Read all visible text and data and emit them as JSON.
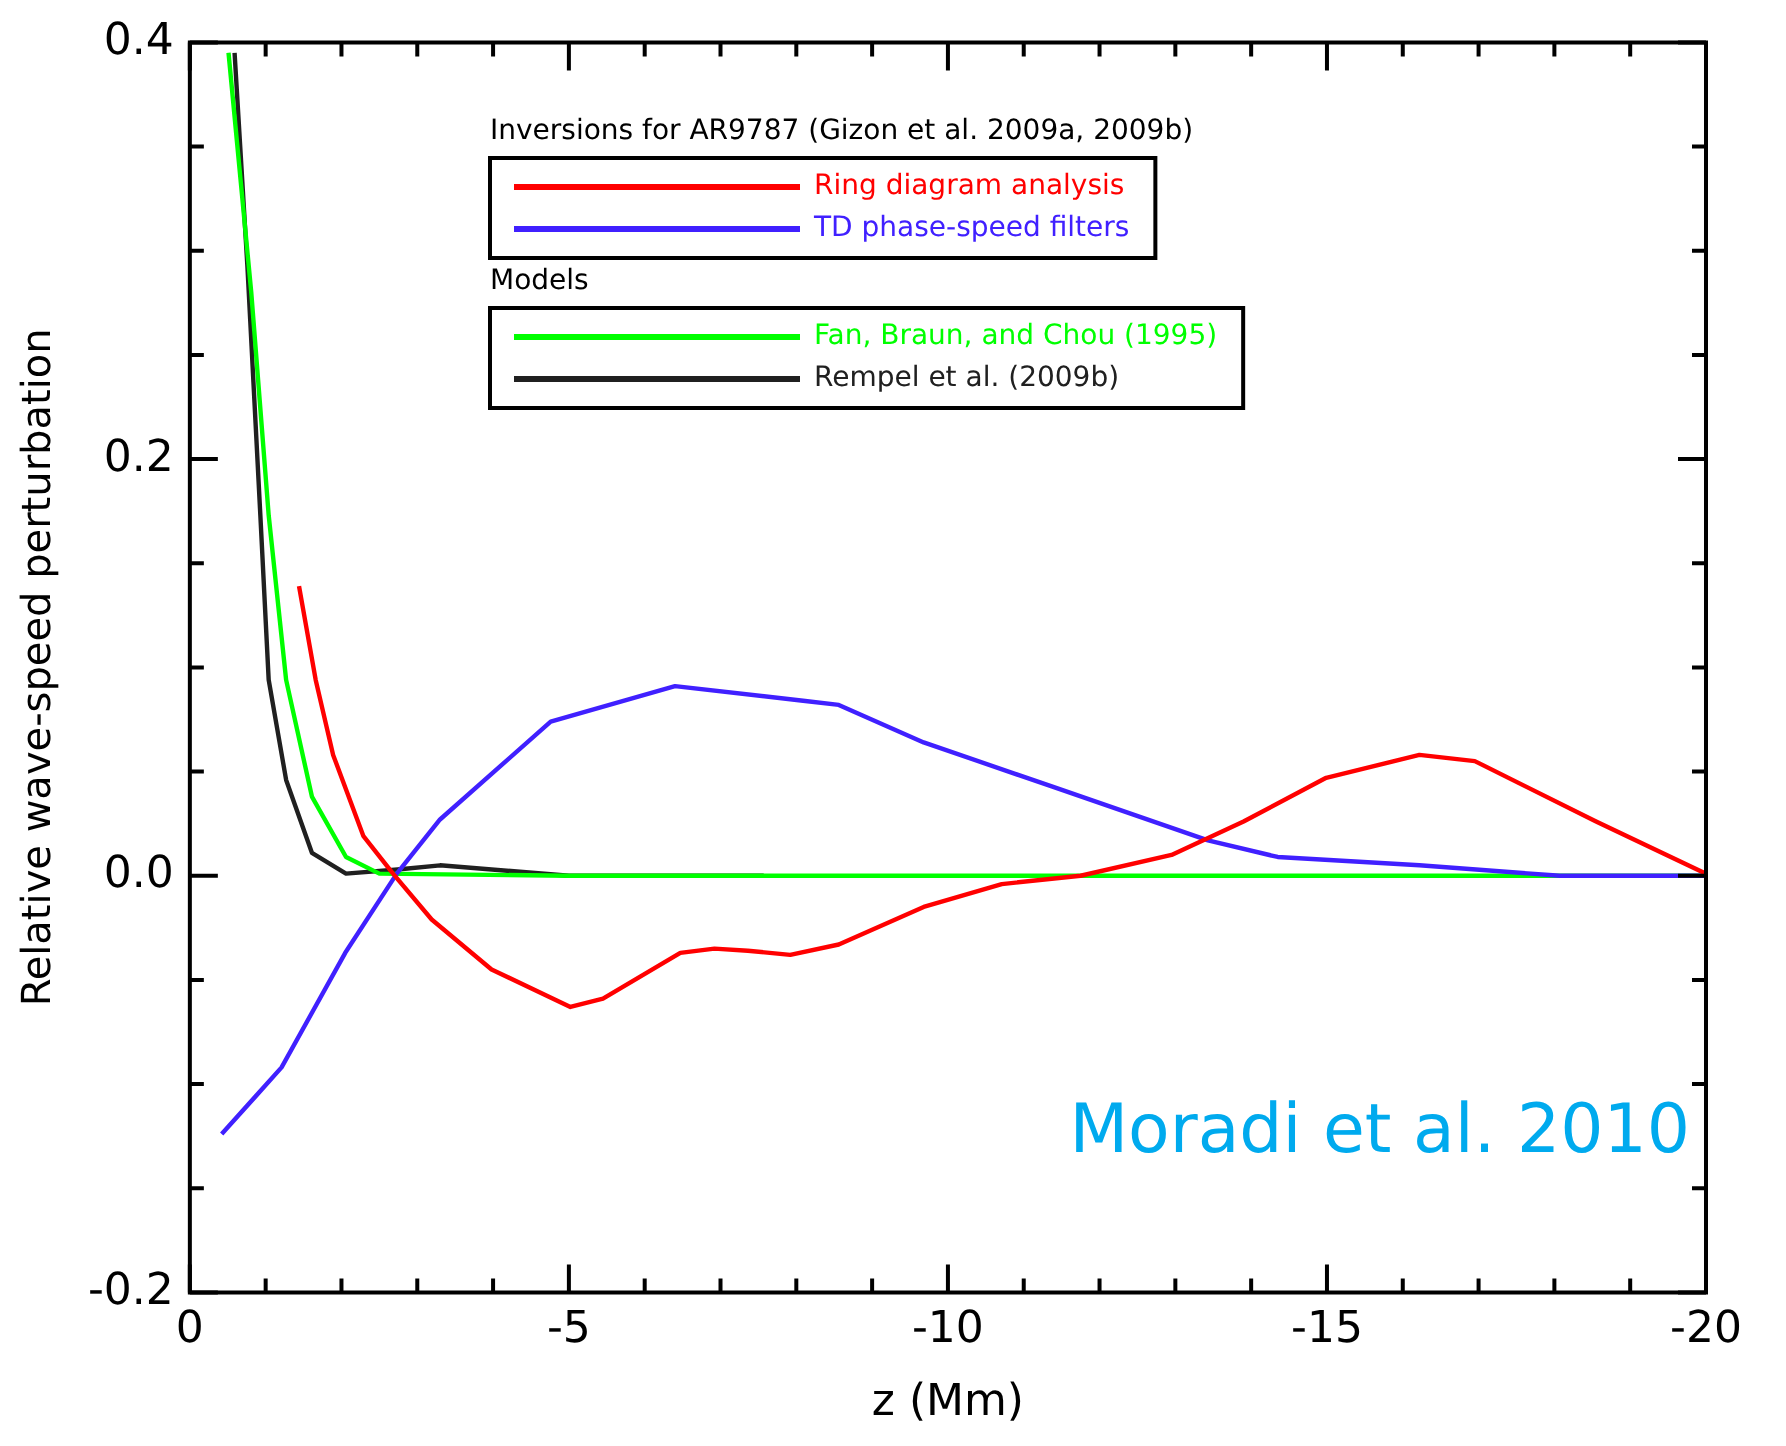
{
  "chart_data": {
    "type": "line",
    "xlabel": "z (Mm)",
    "ylabel": "Relative wave-speed perturbation",
    "legend_title": "Inversions for AR9787 (Gizon et al. 2009a, 2009b)",
    "legend": "top right",
    "grid": false,
    "marker": "none",
    "line_style": "solid",
    "xlim": [
      0,
      -20
    ],
    "ylim": [
      -0.2,
      0.4
    ],
    "xticks": [
      0,
      {
        "value": -1,
        "label": null
      },
      {
        "value": -2,
        "label": null
      },
      {
        "value": -3,
        "label": null
      },
      {
        "value": -4,
        "label": null
      },
      -5,
      {
        "value": -6,
        "label": null
      },
      {
        "value": -7,
        "label": null
      },
      {
        "value": -8,
        "label": null
      },
      {
        "value": -9,
        "label": null
      },
      -10,
      {
        "value": -11,
        "label": null
      },
      {
        "value": -12,
        "label": null
      },
      {
        "value": -13,
        "label": null
      },
      {
        "value": -14,
        "label": null
      },
      -15,
      {
        "value": -16,
        "label": null
      },
      {
        "value": -17,
        "label": null
      },
      {
        "value": -18,
        "label": null
      },
      {
        "value": -19,
        "label": null
      },
      -20
    ],
    "yticks": [
      {
        "value": -0.2,
        "label": "-0.2"
      },
      {
        "value": -0.15,
        "label": null
      },
      {
        "value": -0.1,
        "label": null
      },
      {
        "value": -0.05,
        "label": null
      },
      {
        "value": 0,
        "label": "0.0"
      },
      {
        "value": 0.05,
        "label": null
      },
      {
        "value": 0.1,
        "label": null
      },
      {
        "value": 0.15,
        "label": null
      },
      {
        "value": 0.2,
        "label": "0.2"
      },
      {
        "value": 0.25,
        "label": null
      },
      {
        "value": 0.3,
        "label": null
      },
      {
        "value": 0.35,
        "label": null
      },
      {
        "value": 0.4,
        "label": "0.4"
      }
    ],
    "series": [
      {
        "name": "Ring diagram analysis",
        "color": "#ff0000",
        "x": [
          -1.44,
          -1.66,
          -1.89,
          -2.29,
          -2.68,
          -3.19,
          -3.98,
          -5.02,
          -5.45,
          -6.47,
          -6.92,
          -7.36,
          -7.92,
          -8.56,
          -9.68,
          -10.71,
          -11.75,
          -12.95,
          -13.9,
          -14.99,
          -16.22,
          -16.95,
          -18.55,
          -20
        ],
        "values": [
          0.139,
          0.094,
          0.058,
          0.019,
          0.001,
          -0.021,
          -0.045,
          -0.063,
          -0.059,
          -0.037,
          -0.035,
          -0.036,
          -0.038,
          -0.033,
          -0.015,
          -0.004,
          0,
          0.01,
          0.026,
          0.047,
          0.058,
          0.055,
          0.026,
          0.001
        ]
      },
      {
        "name": "TD phase-speed filters",
        "color": "#4020ff",
        "x": [
          -0.42,
          -1.21,
          -2.05,
          -2.73,
          -3.3,
          -4.76,
          -6.4,
          -8.09,
          -8.56,
          -9.68,
          -11.36,
          -13.43,
          -14.35,
          -16.22,
          -18.07,
          -20
        ],
        "values": [
          -0.124,
          -0.092,
          -0.037,
          0.001,
          0.027,
          0.074,
          0.091,
          0.084,
          0.082,
          0.064,
          0.043,
          0.017,
          0.009,
          0.005,
          0,
          0
        ]
      },
      {
        "name": "Fan, Braun, and Chou (1995)",
        "color": "#00ff00",
        "x": [
          -0.51,
          -0.81,
          -1.04,
          -1.27,
          -1.61,
          -2.06,
          -2.5,
          -5,
          -10,
          -15,
          -20
        ],
        "values": [
          0.395,
          0.28,
          0.173,
          0.094,
          0.038,
          0.009,
          0.001,
          0,
          0,
          0,
          0
        ]
      },
      {
        "name": "Rempel et al. (2009b)",
        "color": "#202020",
        "x": [
          -0.59,
          -0.76,
          -0.93,
          -1.04,
          -1.27,
          -1.61,
          -2.06,
          -2.74,
          -3.3,
          -5,
          -7.57
        ],
        "values": [
          0.395,
          0.292,
          0.173,
          0.094,
          0.046,
          0.011,
          0.001,
          0.003,
          0.005,
          0,
          0
        ]
      }
    ],
    "annotations": [
      "Models",
      "Moradi et al. 2010"
    ]
  }
}
